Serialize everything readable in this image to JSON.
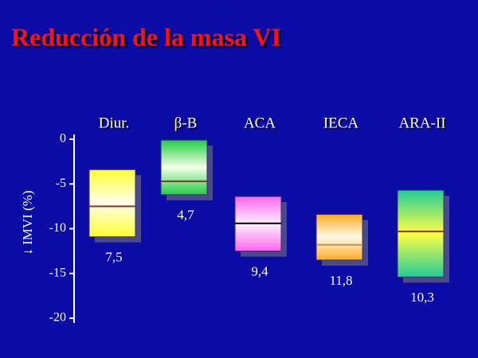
{
  "chart_data": {
    "type": "floating-box",
    "title": "Reducción de la masa VI",
    "y_label": "↓ IMVI (%)",
    "categories": [
      "Diur.",
      "β-B",
      "ACA",
      "IECA",
      "ARA-II"
    ],
    "high": [
      -3.4,
      -0.1,
      -6.4,
      -8.4,
      -5.7
    ],
    "low": [
      -10.9,
      -6.2,
      -12.5,
      -13.5,
      -15.4
    ],
    "values": [
      -7.5,
      -4.7,
      -9.4,
      -11.8,
      -10.3
    ],
    "value_labels": [
      "7,5",
      "4,7",
      "9,4",
      "11,8",
      "10,3"
    ],
    "colors": [
      [
        "#ffff33",
        "#ffffee"
      ],
      [
        "#22cc44",
        "#f4ffe8"
      ],
      [
        "#ff66ee",
        "#fff0ff"
      ],
      [
        "#ffaa22",
        "#fffbe8"
      ],
      [
        "#22cc99",
        "#ffff44"
      ]
    ],
    "median_colors": [
      "#8b3030",
      "#8b3030",
      "#000000",
      "#c09060",
      "#a03020"
    ],
    "ylim": [
      -20,
      0
    ],
    "yticks": [
      0,
      -5,
      -10,
      -15,
      -20
    ]
  }
}
